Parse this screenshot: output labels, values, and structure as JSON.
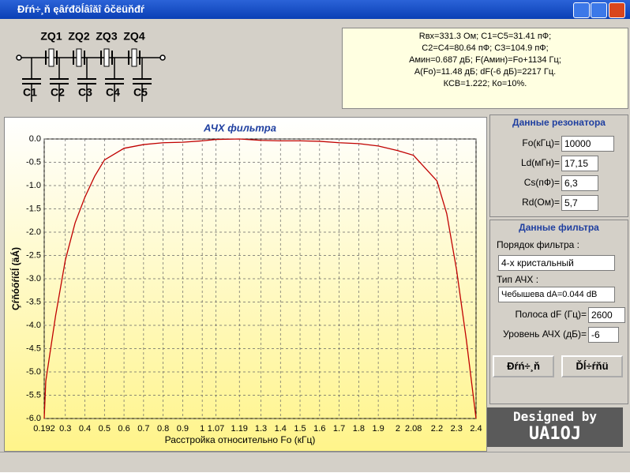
{
  "window": {
    "title": "Đŕń÷¸ň ęâŕđöĺâîăî ôčëüňđŕ"
  },
  "schematic": {
    "resonators": [
      "ZQ1",
      "ZQ2",
      "ZQ3",
      "ZQ4"
    ],
    "capacitors": [
      "C1",
      "C2",
      "C3",
      "C4",
      "C5"
    ]
  },
  "results": [
    "Rвх=331.3 Ом; C1=C5=31.41 пФ;",
    "C2=C4=80.64 пФ; C3=104.9 пФ;",
    "Амин=0.687 дБ; F(Амин)=Fo+1134 Гц;",
    "A(Fo)=11.48 дБ; dF(-6 дБ)=2217 Гц.",
    "КСВ=1.222; Ко=10%."
  ],
  "resonator_panel": {
    "title": "Данные резонатора",
    "fields": [
      {
        "label": "Fo(кГц)=",
        "value": "10000"
      },
      {
        "label": "Ld(мГн)=",
        "value": "17,15"
      },
      {
        "label": "Cs(пФ)=",
        "value": "6,3"
      },
      {
        "label": "Rd(Ом)=",
        "value": "5,7"
      }
    ]
  },
  "filter_panel": {
    "title": "Данные фильтра",
    "order_label": "Порядок фильтра :",
    "order_value": "4-х кристальный",
    "type_label": "Тип АЧХ :",
    "type_value": "Чебышева dA=0.044 dB",
    "fields": [
      {
        "label": "Полоса dF (Гц)=",
        "value": "2600"
      },
      {
        "label": "Уровень АЧХ (дБ)=",
        "value": "-6"
      }
    ]
  },
  "buttons": [
    "Đŕń÷¸ň",
    "Ďĺ÷ŕňü"
  ],
  "logo": [
    "Designed by",
    "UA1OJ"
  ],
  "chart_data": {
    "type": "line",
    "title": "АЧХ фильтра",
    "x_label": "Расстройка относительно Fo (кГц)",
    "y_label": "Çŕňóőŕíčĺ (äÁ)",
    "grid": true,
    "xlim": [
      0.192,
      2.4
    ],
    "ylim": [
      -6,
      0
    ],
    "xticks": [
      0.192,
      0.3,
      0.4,
      0.5,
      0.6,
      0.7,
      0.8,
      0.9,
      1,
      1.07,
      1.19,
      1.3,
      1.4,
      1.5,
      1.6,
      1.7,
      1.8,
      1.9,
      2,
      2.08,
      2.2,
      2.3,
      2.4
    ],
    "yticks": [
      {
        "value": 0,
        "label": "0.0"
      },
      -0.5,
      {
        "value": -1,
        "label": "-1.0"
      },
      -1.5,
      {
        "value": -2,
        "label": "-2.0"
      },
      -2.5,
      {
        "value": -3,
        "label": "-3.0"
      },
      -3.5,
      {
        "value": -4,
        "label": "-4.0"
      },
      -4.5,
      {
        "value": -5,
        "label": "-5.0"
      },
      -5.5,
      {
        "value": -6,
        "label": "-6.0"
      }
    ],
    "x": [
      0.192,
      0.2,
      0.25,
      0.3,
      0.35,
      0.4,
      0.45,
      0.5,
      0.6,
      0.7,
      0.8,
      0.9,
      1,
      1.07,
      1.19,
      1.3,
      1.4,
      1.5,
      1.6,
      1.7,
      1.8,
      1.9,
      2,
      2.08,
      2.2,
      2.25,
      2.3,
      2.35,
      2.4
    ],
    "series": [
      {
        "name": "АЧХ",
        "color": "#c00000",
        "values": [
          -6.0,
          -5.2,
          -3.8,
          -2.6,
          -1.8,
          -1.25,
          -0.8,
          -0.45,
          -0.2,
          -0.12,
          -0.08,
          -0.07,
          -0.04,
          -0.01,
          0,
          -0.03,
          -0.04,
          -0.04,
          -0.05,
          -0.08,
          -0.1,
          -0.15,
          -0.25,
          -0.35,
          -0.9,
          -1.6,
          -2.8,
          -4.3,
          -6.0
        ]
      }
    ]
  }
}
